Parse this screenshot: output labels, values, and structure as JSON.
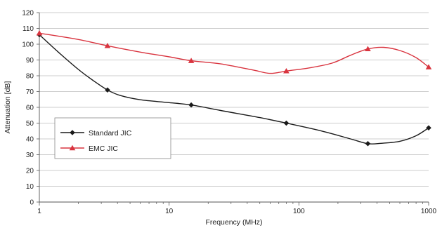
{
  "chart_data": {
    "type": "line",
    "title": "",
    "xlabel": "Frequency (MHz)",
    "ylabel": "Attenuation [dB]",
    "xscale": "log",
    "xlim": [
      1,
      1000
    ],
    "ylim": [
      0,
      120
    ],
    "xticks": [
      1,
      10,
      100,
      1000
    ],
    "xtick_labels": [
      "1",
      "10",
      "100",
      "1000"
    ],
    "yticks": [
      0,
      10,
      20,
      30,
      40,
      50,
      60,
      70,
      80,
      90,
      100,
      110,
      120
    ],
    "ytick_labels": [
      "0",
      "10",
      "20",
      "30",
      "40",
      "50",
      "60",
      "70",
      "80",
      "90",
      "100",
      "110",
      "120"
    ],
    "grid": "horizontal",
    "legend_position": "left-center",
    "series": [
      {
        "name": "Standard JIC",
        "color": "#1a1a1a",
        "marker": "diamond",
        "markers_x": [
          1,
          3.35,
          14.8,
          80,
          340,
          1000
        ],
        "markers_y": [
          106,
          71,
          61.5,
          50,
          37,
          47
        ],
        "x": [
          1,
          1.4,
          2,
          2.6,
          3.35,
          4.2,
          6,
          10,
          14.8,
          25,
          50,
          80,
          150,
          250,
          340,
          430,
          600,
          800,
          1000
        ],
        "y": [
          106,
          95,
          84,
          77,
          71,
          67.5,
          64.8,
          63,
          61.5,
          58,
          53.5,
          50,
          45,
          40,
          37,
          37.2,
          38.5,
          42,
          47
        ]
      },
      {
        "name": "EMC JIC",
        "color": "#d9343f",
        "marker": "triangle",
        "markers_x": [
          1,
          3.35,
          14.8,
          80,
          340,
          1000
        ],
        "markers_y": [
          107,
          99,
          89.5,
          83,
          97,
          85.5
        ],
        "x": [
          1,
          2,
          3.35,
          6,
          10,
          14.8,
          25,
          45,
          60,
          80,
          120,
          180,
          250,
          340,
          450,
          600,
          800,
          1000
        ],
        "y": [
          107,
          103,
          99,
          95,
          92,
          89.5,
          87.5,
          83.5,
          81.5,
          83,
          85,
          88,
          93,
          97,
          98,
          96,
          91.5,
          85.5
        ]
      }
    ]
  }
}
